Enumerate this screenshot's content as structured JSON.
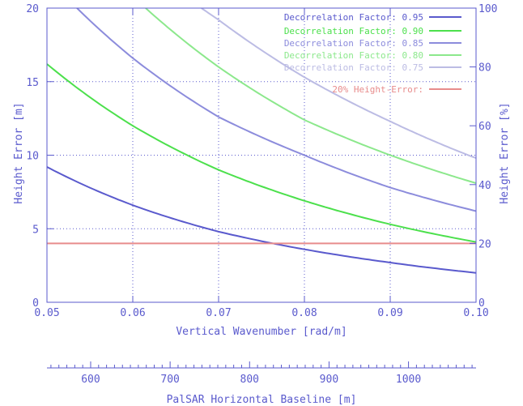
{
  "chart_data": {
    "type": "line",
    "xlabel": "Vertical Wavenumber [rad/m]",
    "ylabel": "Height Error [m]",
    "y2label": "Height Error [%]",
    "xlim": [
      0.05,
      0.1
    ],
    "ylim": [
      0,
      20
    ],
    "y2lim": [
      0,
      100
    ],
    "grid": true,
    "legend_position": "top-right",
    "x_ticks": [
      "0.05",
      "0.06",
      "0.07",
      "0.08",
      "0.09",
      "0.10"
    ],
    "y_ticks": [
      "0",
      "5",
      "10",
      "15",
      "20"
    ],
    "y2_ticks": [
      "0",
      "20",
      "40",
      "60",
      "80",
      "100"
    ],
    "series": [
      {
        "name": "Decorrelation Factor: 0.95",
        "color": "#5a5acd",
        "x": [
          0.05,
          0.06,
          0.07,
          0.08,
          0.09,
          0.1
        ],
        "y": [
          9.2,
          6.6,
          4.8,
          3.6,
          2.7,
          2.0
        ]
      },
      {
        "name": "Decorrelation Factor: 0.90",
        "color": "#4ce04c",
        "x": [
          0.05,
          0.06,
          0.07,
          0.08,
          0.09,
          0.1
        ],
        "y": [
          16.2,
          12.0,
          9.0,
          6.9,
          5.3,
          4.1
        ]
      },
      {
        "name": "Decorrelation Factor: 0.85",
        "color": "#8c8cdc",
        "x": [
          0.0535,
          0.06,
          0.07,
          0.08,
          0.09,
          0.1
        ],
        "y": [
          20.0,
          16.6,
          12.6,
          10.0,
          7.8,
          6.2
        ]
      },
      {
        "name": "Decorrelation Factor: 0.80",
        "color": "#8ce88c",
        "x": [
          0.0615,
          0.07,
          0.08,
          0.09,
          0.1
        ],
        "y": [
          20.0,
          16.0,
          12.4,
          10.0,
          8.1
        ]
      },
      {
        "name": "Decorrelation Factor: 0.75",
        "color": "#bcbce4",
        "x": [
          0.068,
          0.07,
          0.08,
          0.09,
          0.1
        ],
        "y": [
          20.0,
          19.2,
          15.3,
          12.3,
          9.8
        ]
      },
      {
        "name": "20% Height-Error:",
        "color": "#e88c8c",
        "x": [
          0.05,
          0.1
        ],
        "y": [
          4.0,
          4.0
        ]
      }
    ],
    "secondary_axis": {
      "xlabel": "PalSAR Horizontal Baseline [m]",
      "ticks": [
        600,
        700,
        800,
        900,
        1000
      ],
      "range": [
        545,
        1085
      ]
    }
  }
}
